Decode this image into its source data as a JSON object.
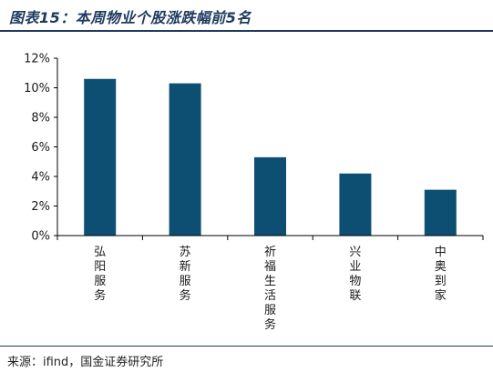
{
  "header": {
    "title": "图表15：本周物业个股涨跌幅前5名"
  },
  "source": "来源：ifind，国金证券研究所",
  "colors": {
    "bar": "#0d4f72",
    "title": "#1f3a5f",
    "axis": "#000000"
  },
  "chart_data": {
    "type": "bar",
    "title": "图表15：本周物业个股涨跌幅前5名",
    "xlabel": "",
    "ylabel": "",
    "categories": [
      "弘阳服务",
      "苏新服务",
      "祈福生活服务",
      "兴业物联",
      "中奥到家"
    ],
    "values": [
      10.6,
      10.3,
      5.3,
      4.2,
      3.1
    ],
    "ylim": [
      0,
      12
    ],
    "yticks": [
      0,
      2,
      4,
      6,
      8,
      10,
      12
    ],
    "ytick_labels": [
      "0%",
      "2%",
      "4%",
      "6%",
      "8%",
      "10%",
      "12%"
    ],
    "grid": false,
    "legend": "none"
  }
}
